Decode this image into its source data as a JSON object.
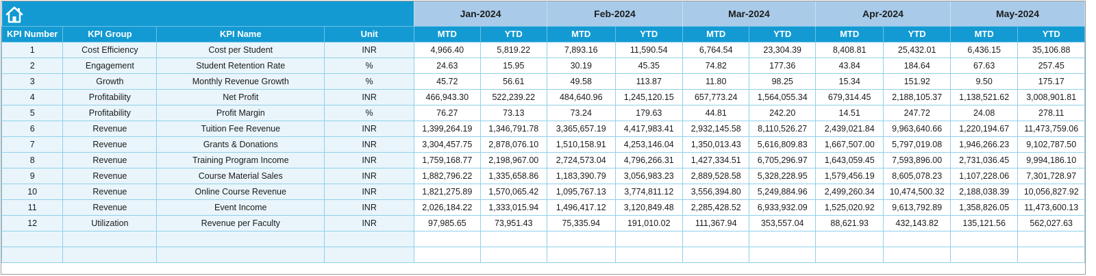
{
  "header": {
    "icon": "home-icon",
    "columns": [
      "KPI Number",
      "KPI Group",
      "KPI Name",
      "Unit"
    ],
    "months": [
      "Jan-2024",
      "Feb-2024",
      "Mar-2024",
      "Apr-2024",
      "May-2024"
    ],
    "sub_columns": [
      "MTD",
      "YTD"
    ]
  },
  "colors": {
    "header_blue": "#139ad3",
    "month_blue": "#a9cbe9",
    "left_cell_bg": "#e9f5fb"
  },
  "rows": [
    {
      "num": "1",
      "group": "Cost Efficiency",
      "name": "Cost per Student",
      "unit": "INR",
      "values": [
        "4,966.40",
        "5,819.22",
        "7,893.16",
        "11,590.54",
        "6,764.54",
        "23,304.39",
        "8,408.81",
        "25,432.01",
        "6,436.15",
        "35,106.88"
      ]
    },
    {
      "num": "2",
      "group": "Engagement",
      "name": "Student Retention Rate",
      "unit": "%",
      "values": [
        "24.63",
        "15.95",
        "30.19",
        "45.35",
        "74.82",
        "177.36",
        "43.84",
        "184.64",
        "67.63",
        "257.45"
      ]
    },
    {
      "num": "3",
      "group": "Growth",
      "name": "Monthly Revenue Growth",
      "unit": "%",
      "values": [
        "45.72",
        "56.61",
        "49.58",
        "113.87",
        "11.80",
        "98.25",
        "15.34",
        "151.92",
        "9.50",
        "175.17"
      ]
    },
    {
      "num": "4",
      "group": "Profitability",
      "name": "Net Profit",
      "unit": "INR",
      "values": [
        "466,943.30",
        "522,239.22",
        "484,640.96",
        "1,245,120.15",
        "657,773.24",
        "1,564,055.34",
        "679,314.45",
        "2,188,105.37",
        "1,138,521.62",
        "3,008,901.81"
      ]
    },
    {
      "num": "5",
      "group": "Profitability",
      "name": "Profit Margin",
      "unit": "%",
      "values": [
        "76.27",
        "73.13",
        "73.24",
        "179.63",
        "44.81",
        "242.20",
        "14.51",
        "247.72",
        "24.08",
        "278.11"
      ]
    },
    {
      "num": "6",
      "group": "Revenue",
      "name": "Tuition Fee Revenue",
      "unit": "INR",
      "values": [
        "1,399,264.19",
        "1,346,791.78",
        "3,365,657.19",
        "4,417,983.41",
        "2,932,145.58",
        "8,110,526.27",
        "2,439,021.84",
        "9,963,640.66",
        "1,220,194.67",
        "11,473,759.06"
      ]
    },
    {
      "num": "7",
      "group": "Revenue",
      "name": "Grants & Donations",
      "unit": "INR",
      "values": [
        "3,304,457.75",
        "2,878,076.10",
        "1,510,158.91",
        "4,253,146.04",
        "1,350,013.43",
        "5,616,809.83",
        "1,667,507.00",
        "5,797,019.08",
        "1,946,266.23",
        "9,102,787.50"
      ]
    },
    {
      "num": "8",
      "group": "Revenue",
      "name": "Training Program Income",
      "unit": "INR",
      "values": [
        "1,759,168.77",
        "2,198,967.00",
        "2,724,573.04",
        "4,796,266.31",
        "1,427,334.51",
        "6,705,296.97",
        "1,643,059.45",
        "7,593,896.00",
        "2,731,036.45",
        "9,994,186.10"
      ]
    },
    {
      "num": "9",
      "group": "Revenue",
      "name": "Course Material Sales",
      "unit": "INR",
      "values": [
        "1,882,796.22",
        "1,335,658.86",
        "1,183,390.79",
        "3,056,983.23",
        "2,889,528.58",
        "5,328,228.95",
        "1,579,456.19",
        "8,605,078.23",
        "1,107,228.06",
        "7,301,728.97"
      ]
    },
    {
      "num": "10",
      "group": "Revenue",
      "name": "Online Course Revenue",
      "unit": "INR",
      "values": [
        "1,821,275.89",
        "1,570,065.42",
        "1,095,767.13",
        "3,774,811.12",
        "3,556,394.80",
        "5,249,884.96",
        "2,499,260.34",
        "10,474,500.32",
        "2,188,038.39",
        "10,056,827.92"
      ]
    },
    {
      "num": "11",
      "group": "Revenue",
      "name": "Event Income",
      "unit": "INR",
      "values": [
        "2,026,184.22",
        "1,333,015.94",
        "1,496,417.12",
        "3,120,849.48",
        "2,285,428.52",
        "6,933,932.09",
        "1,525,020.92",
        "9,613,792.89",
        "1,358,826.05",
        "11,473,600.13"
      ]
    },
    {
      "num": "12",
      "group": "Utilization",
      "name": "Revenue per Faculty",
      "unit": "INR",
      "values": [
        "97,985.65",
        "73,951.43",
        "75,335.94",
        "191,010.02",
        "111,367.94",
        "353,557.04",
        "88,621.93",
        "432,143.82",
        "135,121.56",
        "562,027.63"
      ]
    }
  ],
  "empty_rows": 2
}
